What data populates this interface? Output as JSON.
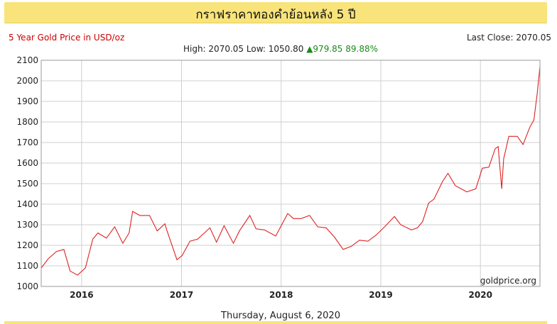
{
  "header": {
    "title": "กราฟราคาทองคำย้อนหลัง 5 ปี"
  },
  "subtitle_left": "5 Year Gold Price in USD/oz",
  "last_close": {
    "label": "Last Close:",
    "value": "2070.05"
  },
  "stats": {
    "high_label": "High:",
    "high": "2070.05",
    "low_label": "Low:",
    "low": "1050.80",
    "change_arrow": "▲",
    "change": "979.85",
    "change_pct": "89.88%"
  },
  "watermark": "goldprice.org",
  "date": "Thursday, August 6, 2020",
  "colors": {
    "line": "#dd2222",
    "banner": "#f8e47a",
    "up": "#1a8a1a",
    "subtitle": "#cc0000"
  },
  "chart_data": {
    "type": "line",
    "xlabel": "",
    "ylabel": "",
    "x_ticks": [
      "2016",
      "2017",
      "2018",
      "2019",
      "2020"
    ],
    "y_ticks": [
      1000,
      1100,
      1200,
      1300,
      1400,
      1500,
      1600,
      1700,
      1800,
      1900,
      2000,
      2100
    ],
    "ylim": [
      1000,
      2100
    ],
    "xlim": [
      "2015-08-06",
      "2020-08-06"
    ],
    "grid": true,
    "series": [
      {
        "x": [
          "2015-08-06",
          "2015-09-01",
          "2015-10-01",
          "2015-10-28",
          "2015-11-20",
          "2015-12-17",
          "2016-01-15",
          "2016-02-11",
          "2016-03-01",
          "2016-04-01",
          "2016-05-01",
          "2016-05-31",
          "2016-06-23",
          "2016-07-06",
          "2016-08-01",
          "2016-09-06",
          "2016-10-04",
          "2016-11-01",
          "2016-11-08",
          "2016-12-15",
          "2017-01-03",
          "2017-02-01",
          "2017-03-01",
          "2017-04-15",
          "2017-05-09",
          "2017-06-06",
          "2017-07-10",
          "2017-08-01",
          "2017-09-08",
          "2017-10-01",
          "2017-11-01",
          "2017-12-12",
          "2018-01-25",
          "2018-02-15",
          "2018-03-15",
          "2018-04-15",
          "2018-05-15",
          "2018-06-15",
          "2018-07-15",
          "2018-08-16",
          "2018-09-15",
          "2018-10-15",
          "2018-11-15",
          "2018-12-15",
          "2019-01-15",
          "2019-02-20",
          "2019-03-15",
          "2019-04-23",
          "2019-05-15",
          "2019-06-03",
          "2019-06-25",
          "2019-07-15",
          "2019-08-15",
          "2019-09-04",
          "2019-10-01",
          "2019-11-12",
          "2019-12-15",
          "2020-01-08",
          "2020-02-01",
          "2020-02-24",
          "2020-03-06",
          "2020-03-19",
          "2020-03-26",
          "2020-04-14",
          "2020-05-15",
          "2020-06-05",
          "2020-06-30",
          "2020-07-15",
          "2020-07-27",
          "2020-08-06"
        ],
        "y": [
          1090,
          1135,
          1170,
          1180,
          1075,
          1055,
          1090,
          1230,
          1260,
          1235,
          1290,
          1210,
          1260,
          1365,
          1345,
          1345,
          1270,
          1305,
          1275,
          1130,
          1150,
          1220,
          1230,
          1285,
          1215,
          1295,
          1210,
          1270,
          1345,
          1280,
          1275,
          1245,
          1355,
          1330,
          1330,
          1345,
          1290,
          1285,
          1240,
          1180,
          1195,
          1225,
          1220,
          1250,
          1290,
          1340,
          1300,
          1275,
          1285,
          1315,
          1405,
          1425,
          1510,
          1550,
          1490,
          1460,
          1475,
          1575,
          1580,
          1670,
          1680,
          1475,
          1620,
          1730,
          1730,
          1690,
          1775,
          1810,
          1940,
          2070
        ]
      }
    ]
  }
}
